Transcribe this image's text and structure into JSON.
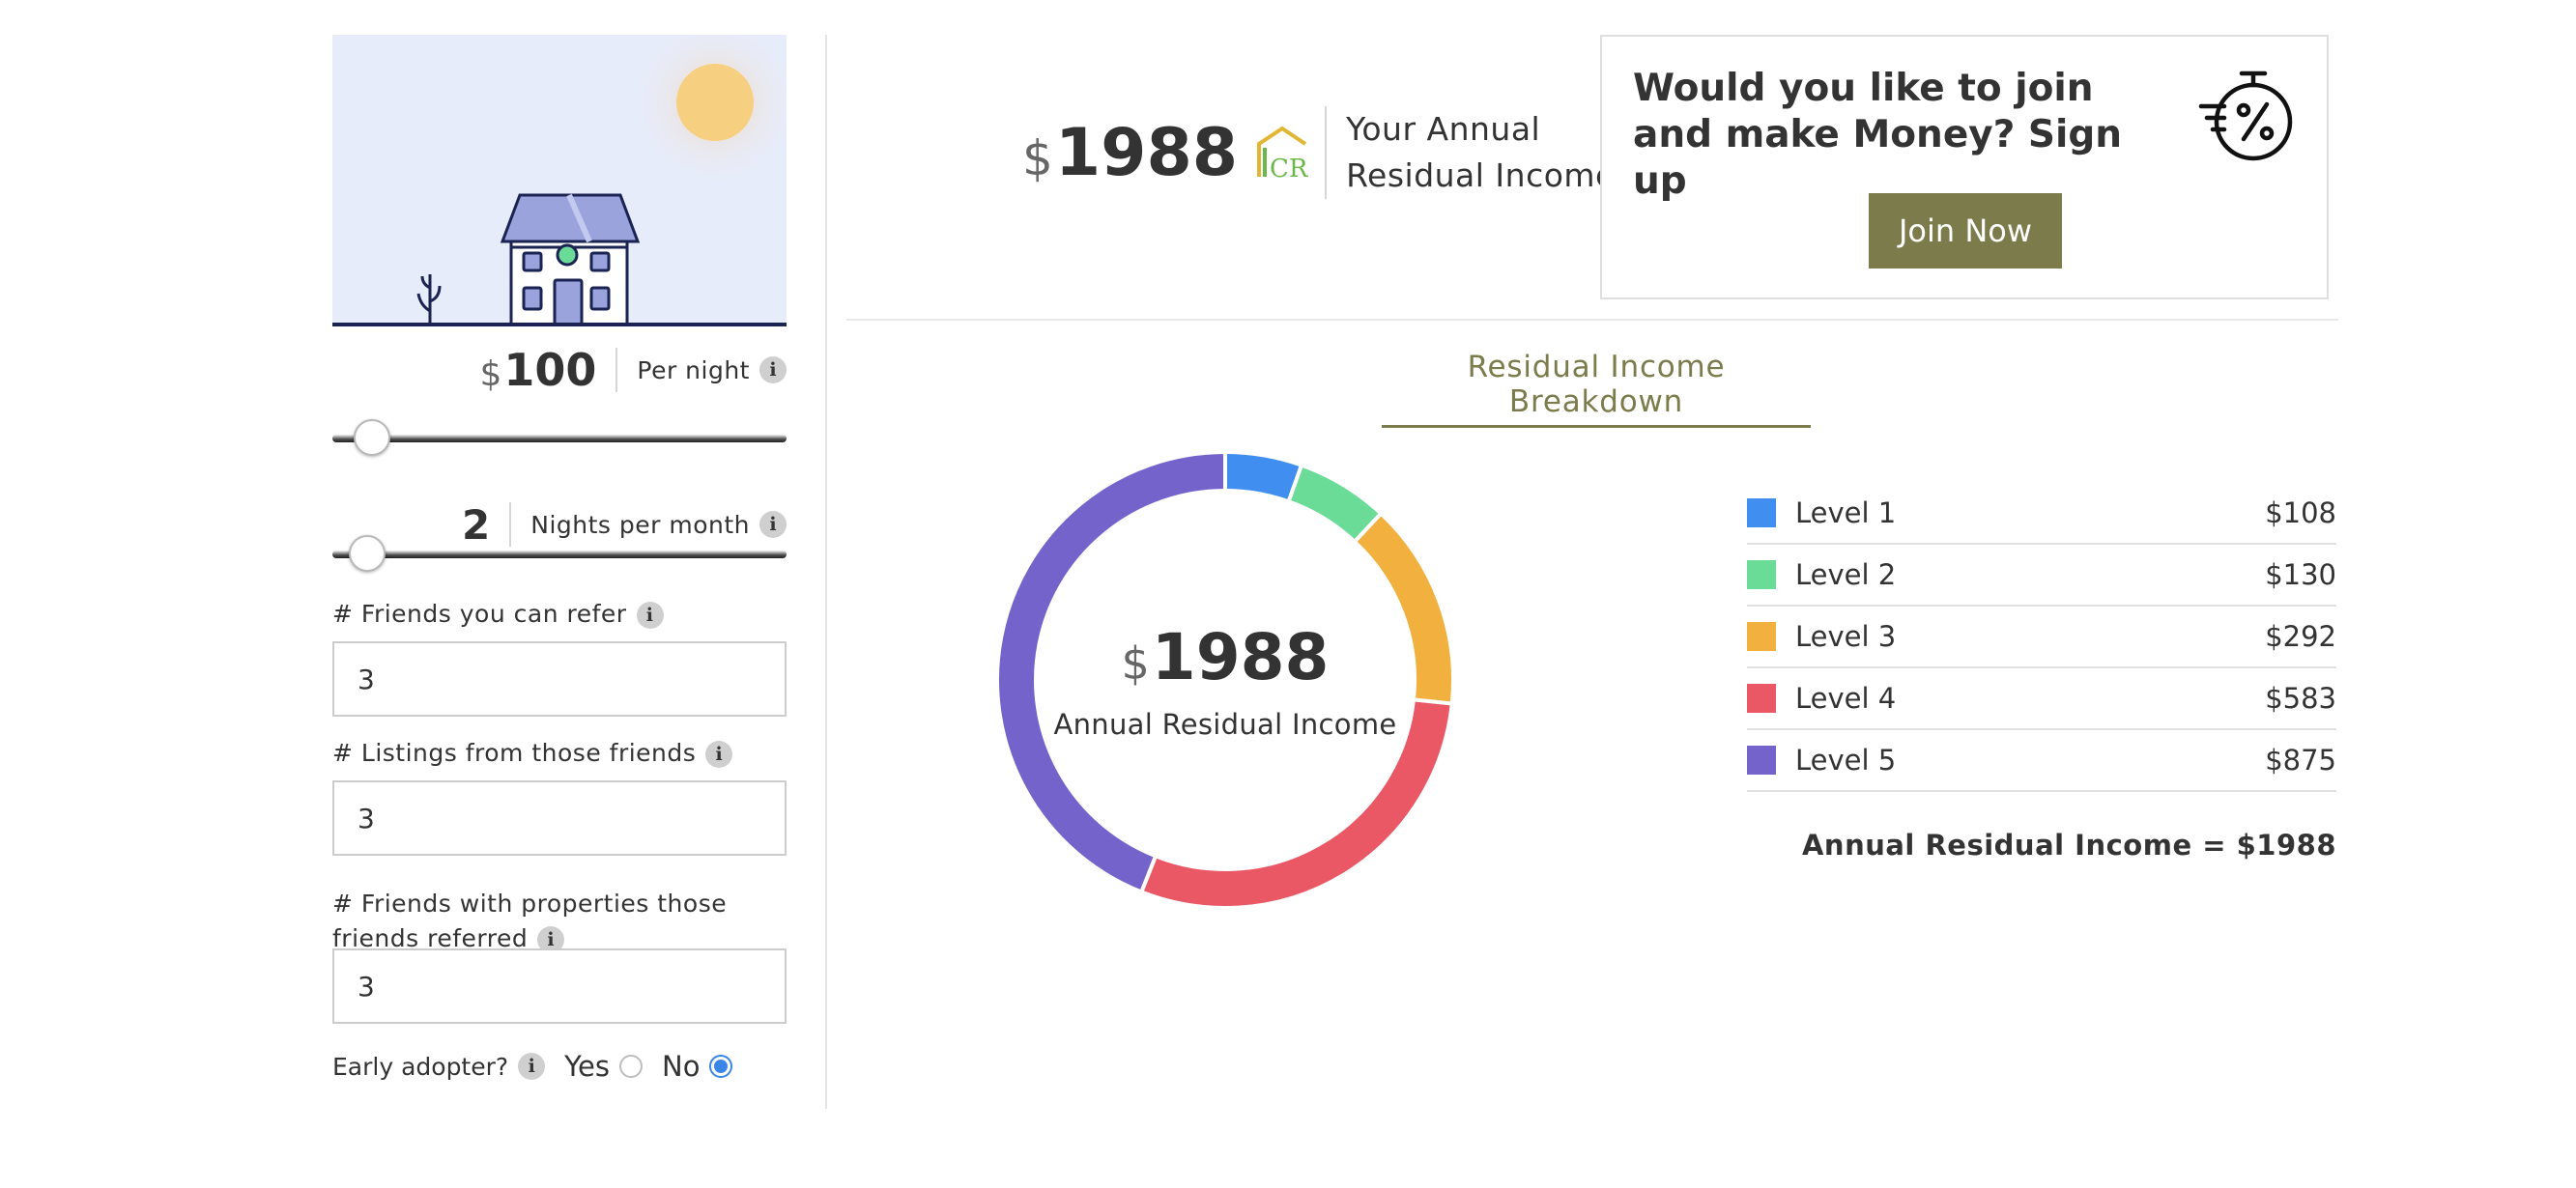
{
  "calculator": {
    "price": {
      "currency": "$",
      "value": "100",
      "label": "Per night",
      "slider_fraction": 0.05
    },
    "nights": {
      "value": "2",
      "label": "Nights per month",
      "slider_fraction": 0.04
    },
    "friends_refer": {
      "label": "# Friends you can refer",
      "value": "3"
    },
    "listings": {
      "label": "# Listings from those friends",
      "value": "3"
    },
    "friends_referred": {
      "label_line1": "# Friends with properties those",
      "label_line2": "friends referred",
      "value": "3"
    },
    "early_adopter": {
      "label": "Early adopter?",
      "yes_label": "Yes",
      "no_label": "No",
      "selected": "No"
    },
    "info_glyph": "i"
  },
  "summary": {
    "currency": "$",
    "amount": "1988",
    "label_line1": "Your Annual",
    "label_line2": "Residual Income",
    "logo_text": "CR"
  },
  "promo": {
    "title": "Would you like to join and make Money? Sign up",
    "button_label": "Join Now",
    "icon": "stopwatch-percent-icon"
  },
  "breakdown": {
    "title": "Residual Income Breakdown",
    "center_currency": "$",
    "center_amount": "1988",
    "center_label": "Annual Residual Income",
    "total_text": "Annual Residual Income = $1988"
  },
  "chart_data": {
    "type": "pie",
    "donut": true,
    "title": "Residual Income Breakdown",
    "categories": [
      "Level 1",
      "Level 2",
      "Level 3",
      "Level 4",
      "Level 5"
    ],
    "values": [
      108,
      130,
      292,
      583,
      875
    ],
    "value_labels": [
      "$108",
      "$130",
      "$292",
      "$583",
      "$875"
    ],
    "colors": [
      "#3f8ef0",
      "#6bdc97",
      "#f2b13f",
      "#ea5865",
      "#7563cc"
    ],
    "legend": "right"
  },
  "theme": {
    "accent": "#7b7b4b",
    "illustration_bg": "#e7ecfa",
    "sun": "#f6cf80",
    "house": "#9aa3dc",
    "radio_selected": "#3a86e6"
  }
}
